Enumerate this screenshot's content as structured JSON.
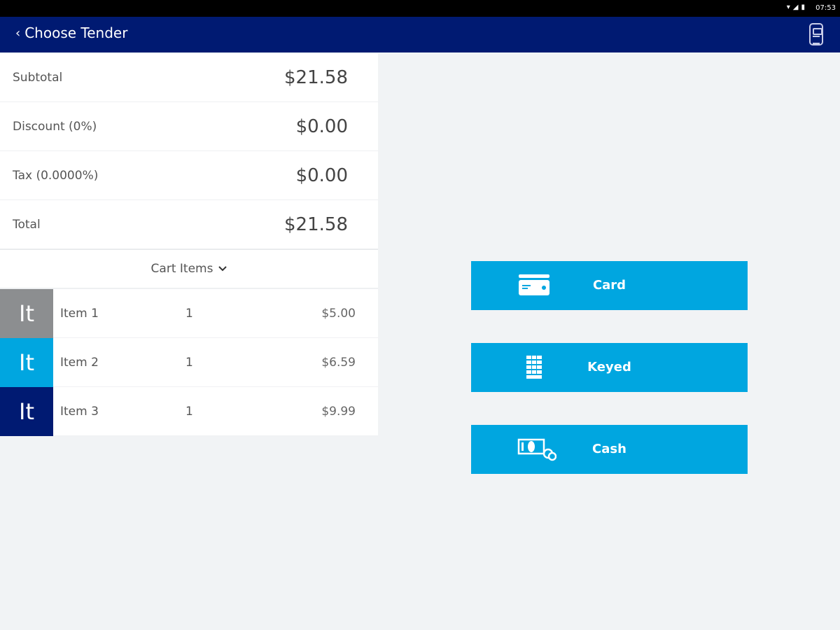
{
  "status": {
    "time": "07:53"
  },
  "header": {
    "back_label": "Choose Tender"
  },
  "summary": [
    {
      "label": "Subtotal",
      "value": "$21.58"
    },
    {
      "label": "Discount (0%)",
      "value": "$0.00"
    },
    {
      "label": "Tax (0.0000%)",
      "value": "$0.00"
    },
    {
      "label": "Total",
      "value": "$21.58"
    }
  ],
  "cart": {
    "header": "Cart Items",
    "items": [
      {
        "thumb": "It",
        "name": "Item 1",
        "qty": "1",
        "price": "$5.00",
        "color": "#8c8e90"
      },
      {
        "thumb": "It",
        "name": "Item 2",
        "qty": "1",
        "price": "$6.59",
        "color": "#00a6e0"
      },
      {
        "thumb": "It",
        "name": "Item 3",
        "qty": "1",
        "price": "$9.99",
        "color": "#001a72"
      }
    ]
  },
  "tenders": [
    {
      "label": "Card",
      "icon": "credit-card-icon"
    },
    {
      "label": "Keyed",
      "icon": "keypad-icon"
    },
    {
      "label": "Cash",
      "icon": "cash-icon"
    }
  ],
  "colors": {
    "header": "#001a72",
    "accent": "#00a6e0"
  }
}
